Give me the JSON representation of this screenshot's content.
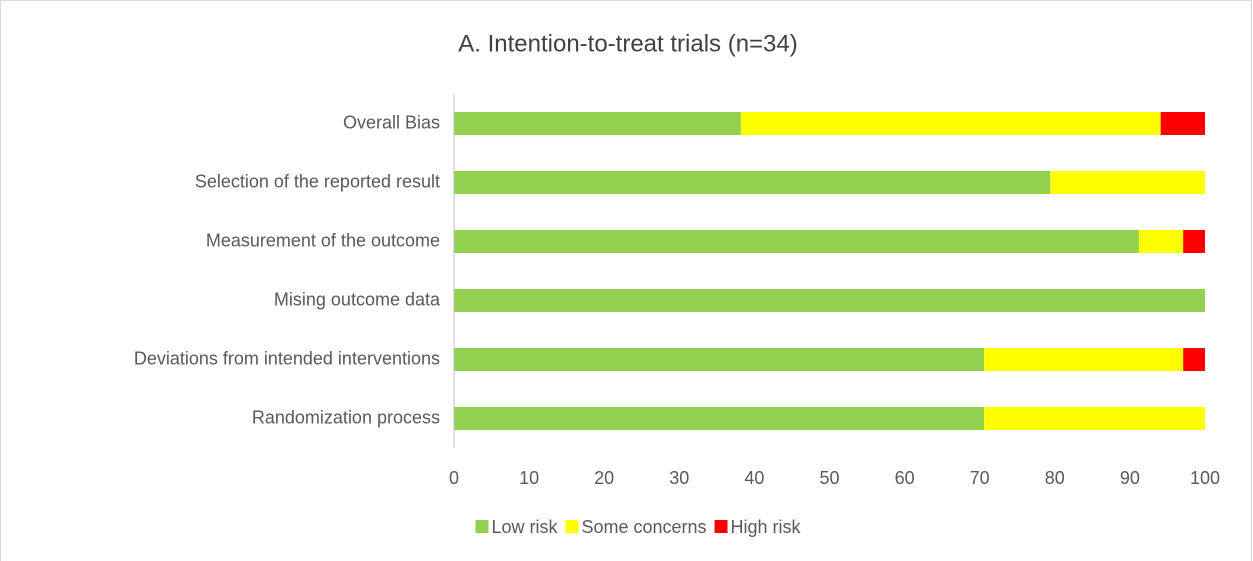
{
  "chart_data": {
    "type": "stacked_barh",
    "title": "A. Intention-to-treat trials (n=34)",
    "categories": [
      "Overall Bias",
      "Selection of the reported result",
      "Measurement of the outcome",
      "Mising outcome data",
      "Deviations from intended interventions",
      "Randomization process"
    ],
    "series": [
      {
        "name": "Low risk",
        "color": "#92d050",
        "values": [
          38.2,
          79.4,
          91.2,
          100,
          70.6,
          70.6
        ]
      },
      {
        "name": "Some concerns",
        "color": "#ffff00",
        "values": [
          55.9,
          20.6,
          5.9,
          0,
          26.5,
          29.4
        ]
      },
      {
        "name": "High risk",
        "color": "#ff0000",
        "values": [
          5.9,
          0,
          2.9,
          0,
          2.9,
          0
        ]
      }
    ],
    "xlim": [
      0,
      100
    ],
    "xticks": [
      0,
      10,
      20,
      30,
      40,
      50,
      60,
      70,
      80,
      90,
      100
    ],
    "legend": "bottom"
  }
}
